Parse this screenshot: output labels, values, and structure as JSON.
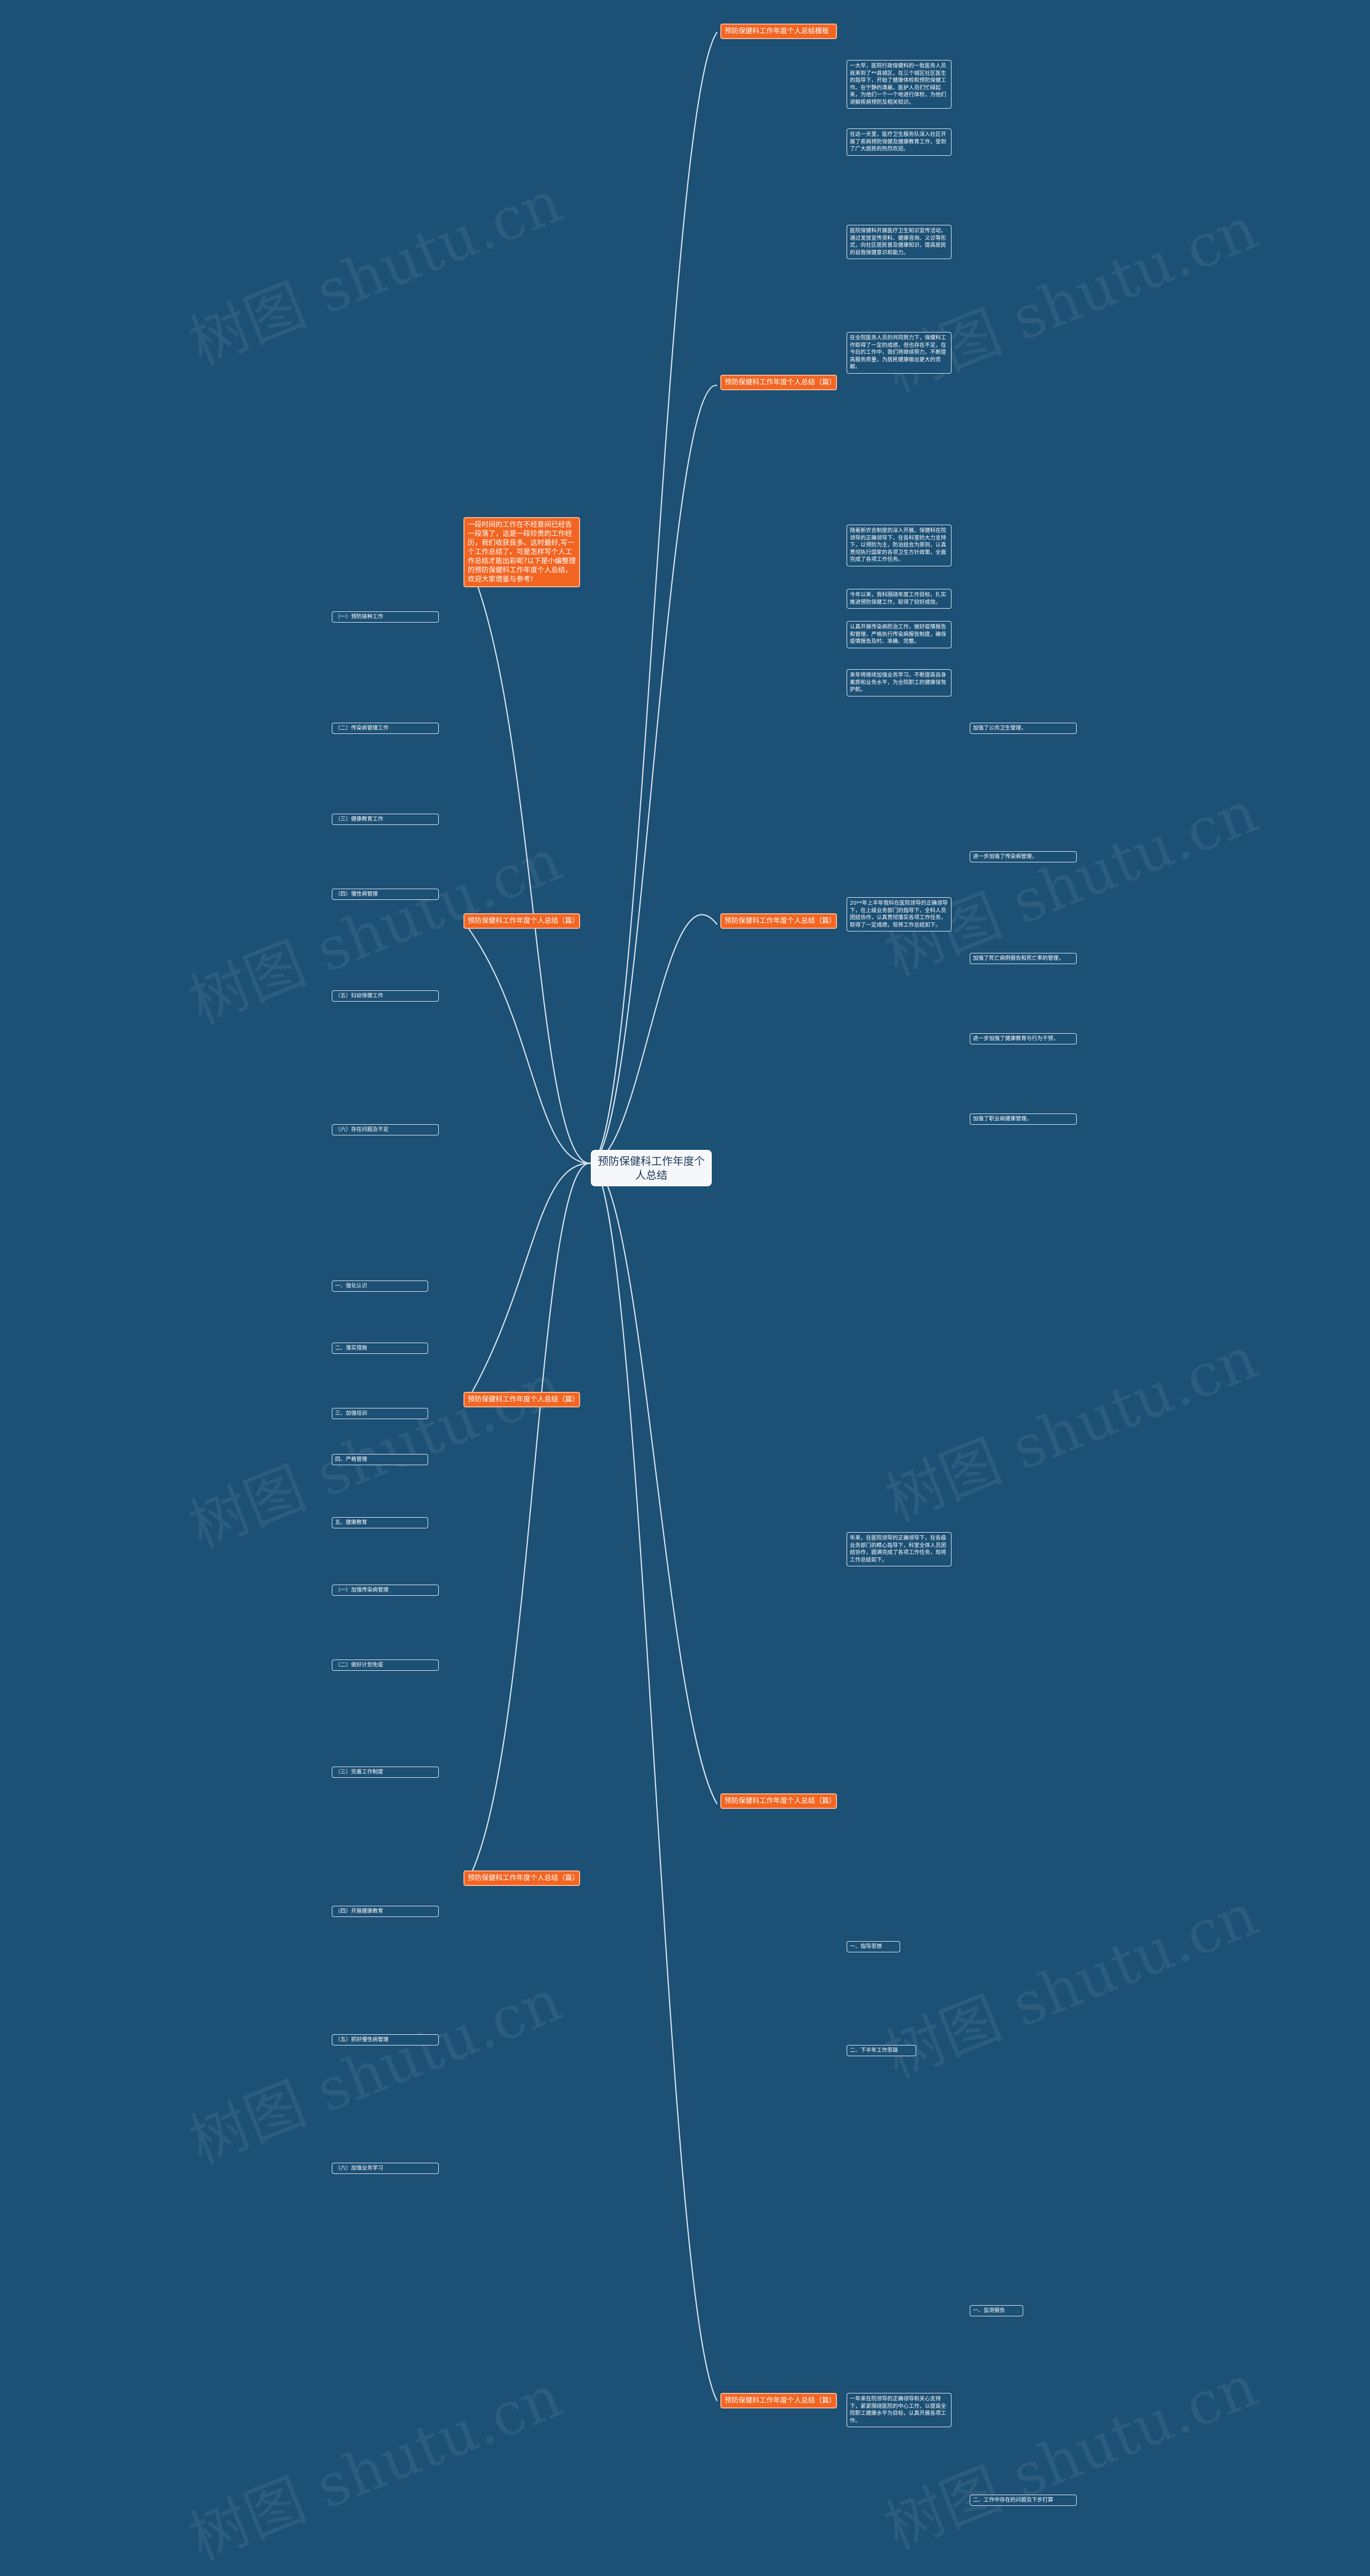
{
  "root": {
    "title": "预防保健科工作年度个人总结"
  },
  "watermark": "树图 shutu.cn",
  "intro": "一段时间的工作在不经意间已经告一段落了，这是一段珍贵的工作经历，我们收获良多。这时最好,写一个工作总结了。可是怎样写个人工作总结才能出彩呢?以下是小编整理的预防保健科工作年度个人总结，欢迎大家借鉴与参考!",
  "branches": [
    {
      "title": "预防保健科工作年度个人总结模板",
      "leaves": [
        "一大早，医院行政保健科的一批医务人员就来到了**县城区，在三个城区社区医生的指导下，开始了健康体检和预防保健工作。在宁静的清晨，医护人员们忙碌起来，为他们一个一个地进行体检，为他们讲解疾病预防及相关知识。",
        "在这一天里，医疗卫生服务队深入社区开展了疾病预防保健及健康教育工作，受到了广大居民的热烈欢迎。",
        "医院保健科开展医疗卫生知识宣传活动，通过发放宣传资料、健康咨询、义诊等形式，向社区居民普及健康知识，提高居民的自我保健意识和能力。",
        "在全院医务人员的共同努力下，保健科工作取得了一定的成绩，但也存在不足，在今后的工作中，我们将继续努力，不断提高服务质量，为居民健康做出更大的贡献。"
      ]
    },
    {
      "title": "预防保健科工作年度个人总结（篇）",
      "leaves": [
        "随着新农合制度的深入开展，保健科在院领导的正确领导下，在各科室的大力支持下，以预防为主，防治结合为原则，认真贯彻执行国家的各项卫生方针政策，全面完成了各项工作任务。",
        "今年以来，我科围绕年度工作目标，扎实推进预防保健工作，取得了较好成效。",
        "认真开展传染病防治工作，做好疫情报告和管理，严格执行传染病报告制度，确保疫情报告及时、准确、完整。",
        "来年将继续加强业务学习，不断提高自身素质和业务水平，为全院职工的健康保驾护航。"
      ]
    },
    {
      "title": "预防保健科工作年度个人总结（篇）",
      "leaves": [
        "20**年上半年我科在医院领导的正确领导下，在上级业务部门的指导下，全科人员团结协作，认真贯彻落实各项工作任务，取得了一定成绩，现将工作总结如下。",
        "加强了公共卫生管理，",
        "进一步加强了传染病管理，",
        "加强了死亡病例报告和死亡率的管理，",
        "进一步加强了健康教育与行为干预，",
        "加强了职业病健康管理。"
      ]
    },
    {
      "title": "预防保健科工作年度个人总结（篇）",
      "leaves": [
        "年来，在医院领导的正确领导下，在各级业务部门的精心指导下，科室全体人员团结协作，圆满完成了各项工作任务，现将工作总结如下。",
        "一、指导思想",
        "二、下半年工作思路"
      ]
    },
    {
      "title": "预防保健科工作年度个人总结（篇）",
      "leaves": [
        "一年来在院领导的正确领导和关心支持下，紧紧围绕医院的中心工作，以提高全院职工健康水平为目标，认真开展各项工作。",
        "一、监测报告",
        "二、工作中存在的问题及下步打算"
      ]
    },
    {
      "title": "预防保健科工作年度个人总结（篇）",
      "leaves": [
        "（一）预防接种工作",
        "（二）传染病管理工作",
        "（三）健康教育工作",
        "（四）慢性病管理",
        "（五）妇幼保健工作",
        "（六）存在问题及不足"
      ]
    },
    {
      "title": "预防保健科工作年度个人总结（篇）",
      "leaves": [
        "一、强化认识",
        "二、落实措施",
        "三、加强培训",
        "四、严格管理",
        "五、健康教育"
      ]
    },
    {
      "title": "预防保健科工作年度个人总结（篇）",
      "leaves": [
        "（一）加强传染病管理",
        "（二）做好计划免疫",
        "（三）完善工作制度",
        "（四）开展健康教育",
        "（五）抓好慢性病管理",
        "（六）加强业务学习"
      ]
    }
  ]
}
